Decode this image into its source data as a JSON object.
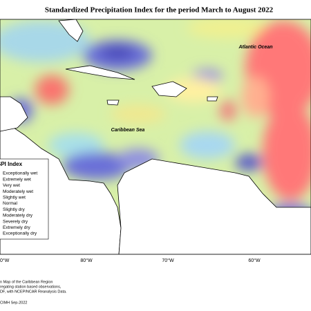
{
  "header": {
    "title": "Standardized Precipitation Index for the period March to August 2022"
  },
  "map": {
    "labels": [
      "Atlantic Ocean",
      "Caribbean Sea"
    ],
    "longitudes": [
      "0°W",
      "80°W",
      "70°W",
      "60°W"
    ]
  },
  "legend": {
    "title": "SPI Index",
    "items": [
      "Exceptionally wet",
      "Extremely wet",
      "Very wet",
      "Moderately wet",
      "Slightly wet",
      "Normal",
      "Slightly dry",
      "Moderately dry",
      "Severely dry",
      "Extremely dry",
      "Exceptionally dry"
    ]
  },
  "footer": {
    "lines": [
      "n Map of the Caribbean Region",
      "regating station based observations,",
      "DF, with NCEP/NCAR Reanalysis Data."
    ],
    "credit": "CIMH Sep-2022"
  }
}
